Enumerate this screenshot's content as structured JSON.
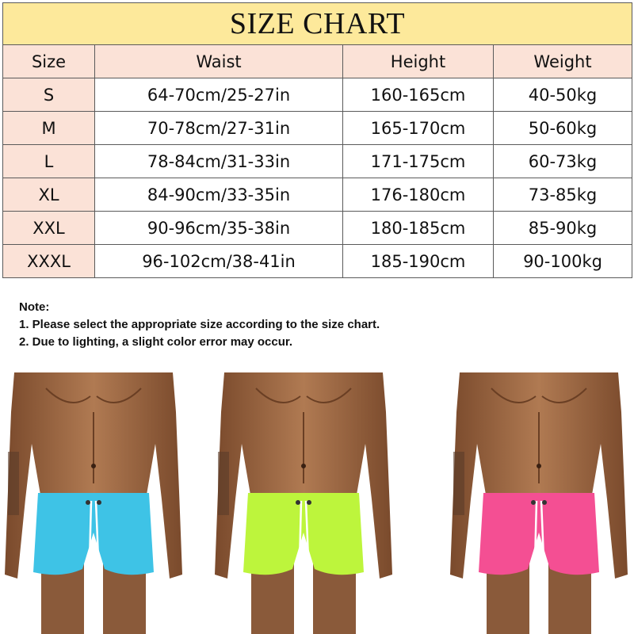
{
  "size_chart": {
    "title": "SIZE CHART",
    "columns": [
      "Size",
      "Waist",
      "Height",
      "Weight"
    ],
    "rows": [
      [
        "S",
        "64-70cm/25-27in",
        "160-165cm",
        "40-50kg"
      ],
      [
        "M",
        "70-78cm/27-31in",
        "165-170cm",
        "50-60kg"
      ],
      [
        "L",
        "78-84cm/31-33in",
        "171-175cm",
        "60-73kg"
      ],
      [
        "XL",
        "84-90cm/33-35in",
        "176-180cm",
        "73-85kg"
      ],
      [
        "XXL",
        "90-96cm/35-38in",
        "180-185cm",
        "85-90kg"
      ],
      [
        "XXXL",
        "96-102cm/38-41in",
        "185-190cm",
        "90-100kg"
      ]
    ],
    "colors": {
      "title_bg": "#fde99b",
      "header_bg": "#fbe2d7",
      "border": "#5a5a5a"
    }
  },
  "notes": {
    "heading": "Note:",
    "items": [
      "1. Please select the appropriate size according to the size chart.",
      "2. Due to lighting, a slight color error may occur."
    ]
  },
  "product_photos": [
    {
      "shorts_color": "#3ec3e6"
    },
    {
      "shorts_color": "#bdf53c"
    },
    {
      "shorts_color": "#f44f93"
    }
  ]
}
